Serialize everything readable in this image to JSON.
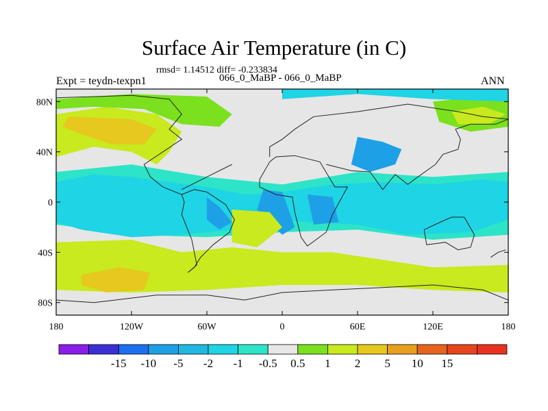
{
  "title": "Surface Air Temperature (in C)",
  "stats_line": "rmsd= 1.14512 diff= -0.233834",
  "expt_line": "Expt = teydn-texpn1",
  "case_line": "066_0_MaBP - 066_0_MaBP",
  "season": "ANN",
  "chart_data": {
    "type": "heatmap",
    "title": "Surface Air Temperature (in C)",
    "xlabel": "",
    "ylabel": "",
    "xlim": [
      -180,
      180
    ],
    "ylim": [
      -90,
      90
    ],
    "x_ticks": [
      {
        "value": -180,
        "label": "180"
      },
      {
        "value": -120,
        "label": "120W"
      },
      {
        "value": -60,
        "label": "60W"
      },
      {
        "value": 0,
        "label": "0"
      },
      {
        "value": 60,
        "label": "60E"
      },
      {
        "value": 120,
        "label": "120E"
      },
      {
        "value": 180,
        "label": "180"
      }
    ],
    "y_ticks": [
      {
        "value": 80,
        "label": "80N"
      },
      {
        "value": 40,
        "label": "40N"
      },
      {
        "value": 0,
        "label": "0"
      },
      {
        "value": -40,
        "label": "40S"
      },
      {
        "value": -80,
        "label": "80S"
      }
    ],
    "colorbar": {
      "colors": [
        "#8a1ee8",
        "#3b2fd4",
        "#1e6ff0",
        "#1ea0e6",
        "#20b8e0",
        "#1fd4e4",
        "#2ee4c8",
        "#e6e6e6",
        "#7be01e",
        "#c8ea1e",
        "#e6c81e",
        "#e6a01e",
        "#e6641e",
        "#e6461e",
        "#e6321e"
      ],
      "labels": [
        "-15",
        "-10",
        "-5",
        "-2",
        "-1",
        "-0.5",
        "0.5",
        "1",
        "2",
        "5",
        "10",
        "15"
      ]
    },
    "regions": [
      {
        "fill": "#e6e6e6",
        "points": [
          [
            -180,
            90
          ],
          [
            180,
            90
          ],
          [
            180,
            -90
          ],
          [
            -180,
            -90
          ]
        ]
      },
      {
        "fill": "#2ee4c8",
        "points": [
          [
            -180,
            24
          ],
          [
            -120,
            30
          ],
          [
            -60,
            20
          ],
          [
            0,
            14
          ],
          [
            60,
            24
          ],
          [
            120,
            20
          ],
          [
            180,
            24
          ],
          [
            180,
            -26
          ],
          [
            120,
            -30
          ],
          [
            60,
            -22
          ],
          [
            0,
            -24
          ],
          [
            -60,
            -28
          ],
          [
            -120,
            -26
          ],
          [
            -180,
            -18
          ]
        ]
      },
      {
        "fill": "#1fd4e4",
        "points": [
          [
            -180,
            16
          ],
          [
            -150,
            22
          ],
          [
            -120,
            20
          ],
          [
            -90,
            16
          ],
          [
            -60,
            12
          ],
          [
            -30,
            6
          ],
          [
            0,
            8
          ],
          [
            40,
            14
          ],
          [
            80,
            16
          ],
          [
            120,
            14
          ],
          [
            160,
            18
          ],
          [
            180,
            16
          ],
          [
            180,
            -14
          ],
          [
            150,
            -24
          ],
          [
            100,
            -26
          ],
          [
            60,
            -18
          ],
          [
            20,
            -16
          ],
          [
            0,
            -14
          ],
          [
            -40,
            -22
          ],
          [
            -80,
            -26
          ],
          [
            -120,
            -28
          ],
          [
            -160,
            -22
          ],
          [
            -180,
            -16
          ]
        ]
      },
      {
        "fill": "#1ea0e6",
        "points": [
          [
            -60,
            4
          ],
          [
            -50,
            -4
          ],
          [
            -40,
            -16
          ],
          [
            -50,
            -22
          ],
          [
            -60,
            -14
          ]
        ]
      },
      {
        "fill": "#1ea0e6",
        "points": [
          [
            -15,
            10
          ],
          [
            0,
            8
          ],
          [
            10,
            -20
          ],
          [
            0,
            -26
          ],
          [
            -20,
            -6
          ]
        ]
      },
      {
        "fill": "#1ea0e6",
        "points": [
          [
            60,
            52
          ],
          [
            80,
            48
          ],
          [
            95,
            42
          ],
          [
            90,
            30
          ],
          [
            70,
            24
          ],
          [
            55,
            30
          ]
        ]
      },
      {
        "fill": "#1ea0e6",
        "points": [
          [
            20,
            6
          ],
          [
            40,
            4
          ],
          [
            45,
            -16
          ],
          [
            25,
            -18
          ]
        ]
      },
      {
        "fill": "#c8ea1e",
        "points": [
          [
            -180,
            70
          ],
          [
            -140,
            76
          ],
          [
            -100,
            70
          ],
          [
            -80,
            56
          ],
          [
            -90,
            40
          ],
          [
            -100,
            30
          ],
          [
            -120,
            40
          ],
          [
            -150,
            44
          ],
          [
            -180,
            36
          ]
        ]
      },
      {
        "fill": "#e6c81e",
        "points": [
          [
            -170,
            68
          ],
          [
            -120,
            66
          ],
          [
            -100,
            58
          ],
          [
            -110,
            46
          ],
          [
            -135,
            46
          ],
          [
            -160,
            54
          ],
          [
            -175,
            60
          ]
        ]
      },
      {
        "fill": "#7be01e",
        "points": [
          [
            -180,
            82
          ],
          [
            -120,
            86
          ],
          [
            -60,
            84
          ],
          [
            -40,
            70
          ],
          [
            -50,
            60
          ],
          [
            -80,
            62
          ],
          [
            -110,
            74
          ],
          [
            -150,
            76
          ],
          [
            -180,
            74
          ]
        ]
      },
      {
        "fill": "#7be01e",
        "points": [
          [
            120,
            80
          ],
          [
            160,
            84
          ],
          [
            180,
            80
          ],
          [
            180,
            60
          ],
          [
            150,
            56
          ],
          [
            125,
            64
          ]
        ]
      },
      {
        "fill": "#c8ea1e",
        "points": [
          [
            135,
            72
          ],
          [
            160,
            76
          ],
          [
            178,
            70
          ],
          [
            165,
            62
          ],
          [
            140,
            62
          ]
        ]
      },
      {
        "fill": "#c8ea1e",
        "points": [
          [
            -180,
            -32
          ],
          [
            -120,
            -30
          ],
          [
            -80,
            -40
          ],
          [
            -40,
            -36
          ],
          [
            0,
            -40
          ],
          [
            40,
            -40
          ],
          [
            80,
            -46
          ],
          [
            120,
            -52
          ],
          [
            180,
            -50
          ],
          [
            180,
            -72
          ],
          [
            120,
            -70
          ],
          [
            60,
            -66
          ],
          [
            0,
            -66
          ],
          [
            -60,
            -70
          ],
          [
            -120,
            -72
          ],
          [
            -180,
            -70
          ]
        ]
      },
      {
        "fill": "#e6c81e",
        "points": [
          [
            -160,
            -58
          ],
          [
            -130,
            -52
          ],
          [
            -105,
            -56
          ],
          [
            -110,
            -70
          ],
          [
            -140,
            -72
          ],
          [
            -160,
            -66
          ]
        ]
      },
      {
        "fill": "#c8ea1e",
        "points": [
          [
            -40,
            -6
          ],
          [
            -10,
            -8
          ],
          [
            0,
            -20
          ],
          [
            -20,
            -36
          ],
          [
            -40,
            -32
          ]
        ]
      },
      {
        "fill": "#1fd4e4",
        "points": [
          [
            0,
            90
          ],
          [
            180,
            90
          ],
          [
            180,
            80
          ],
          [
            120,
            82
          ],
          [
            60,
            86
          ],
          [
            0,
            82
          ]
        ]
      }
    ],
    "coastlines": [
      [
        [
          -180,
          83
        ],
        [
          -120,
          85
        ],
        [
          -90,
          82
        ],
        [
          -80,
          70
        ],
        [
          -90,
          58
        ],
        [
          -80,
          50
        ],
        [
          -95,
          40
        ],
        [
          -110,
          30
        ],
        [
          -105,
          20
        ],
        [
          -95,
          12
        ],
        [
          -80,
          6
        ]
      ],
      [
        [
          -80,
          6
        ],
        [
          -70,
          10
        ],
        [
          -60,
          8
        ],
        [
          -45,
          -2
        ],
        [
          -38,
          -14
        ],
        [
          -42,
          -24
        ],
        [
          -55,
          -34
        ],
        [
          -65,
          -44
        ],
        [
          -70,
          -52
        ],
        [
          -75,
          -56
        ],
        [
          -68,
          -50
        ],
        [
          -72,
          -30
        ],
        [
          -80,
          -10
        ],
        [
          -78,
          0
        ],
        [
          -80,
          6
        ]
      ],
      [
        [
          -18,
          18
        ],
        [
          -10,
          32
        ],
        [
          -5,
          36
        ],
        [
          10,
          37
        ],
        [
          30,
          32
        ],
        [
          42,
          12
        ],
        [
          52,
          12
        ],
        [
          40,
          -10
        ],
        [
          35,
          -24
        ],
        [
          20,
          -35
        ],
        [
          15,
          -28
        ],
        [
          10,
          -8
        ],
        [
          8,
          4
        ],
        [
          -5,
          6
        ],
        [
          -18,
          12
        ],
        [
          -18,
          18
        ]
      ],
      [
        [
          -10,
          36
        ],
        [
          -10,
          44
        ],
        [
          0,
          50
        ],
        [
          10,
          58
        ],
        [
          25,
          68
        ],
        [
          60,
          72
        ],
        [
          100,
          78
        ],
        [
          140,
          72
        ],
        [
          160,
          68
        ],
        [
          180,
          66
        ]
      ],
      [
        [
          35,
          30
        ],
        [
          55,
          25
        ],
        [
          70,
          24
        ],
        [
          80,
          10
        ],
        [
          90,
          22
        ],
        [
          100,
          14
        ],
        [
          108,
          20
        ],
        [
          122,
          30
        ],
        [
          128,
          38
        ],
        [
          140,
          42
        ],
        [
          142,
          50
        ],
        [
          138,
          58
        ],
        [
          150,
          62
        ],
        [
          170,
          62
        ],
        [
          180,
          66
        ]
      ],
      [
        [
          113,
          -22
        ],
        [
          115,
          -34
        ],
        [
          130,
          -32
        ],
        [
          140,
          -38
        ],
        [
          150,
          -36
        ],
        [
          153,
          -26
        ],
        [
          145,
          -12
        ],
        [
          135,
          -12
        ],
        [
          128,
          -15
        ],
        [
          113,
          -22
        ]
      ],
      [
        [
          -180,
          -78
        ],
        [
          -150,
          -80
        ],
        [
          -100,
          -74
        ],
        [
          -60,
          -74
        ],
        [
          -30,
          -78
        ],
        [
          0,
          -72
        ],
        [
          40,
          -70
        ],
        [
          80,
          -68
        ],
        [
          120,
          -66
        ],
        [
          160,
          -70
        ],
        [
          180,
          -78
        ]
      ],
      [
        [
          -80,
          10
        ],
        [
          -60,
          20
        ],
        [
          -40,
          30
        ]
      ],
      [
        [
          166,
          -44
        ],
        [
          172,
          -40
        ],
        [
          178,
          -38
        ]
      ]
    ]
  }
}
